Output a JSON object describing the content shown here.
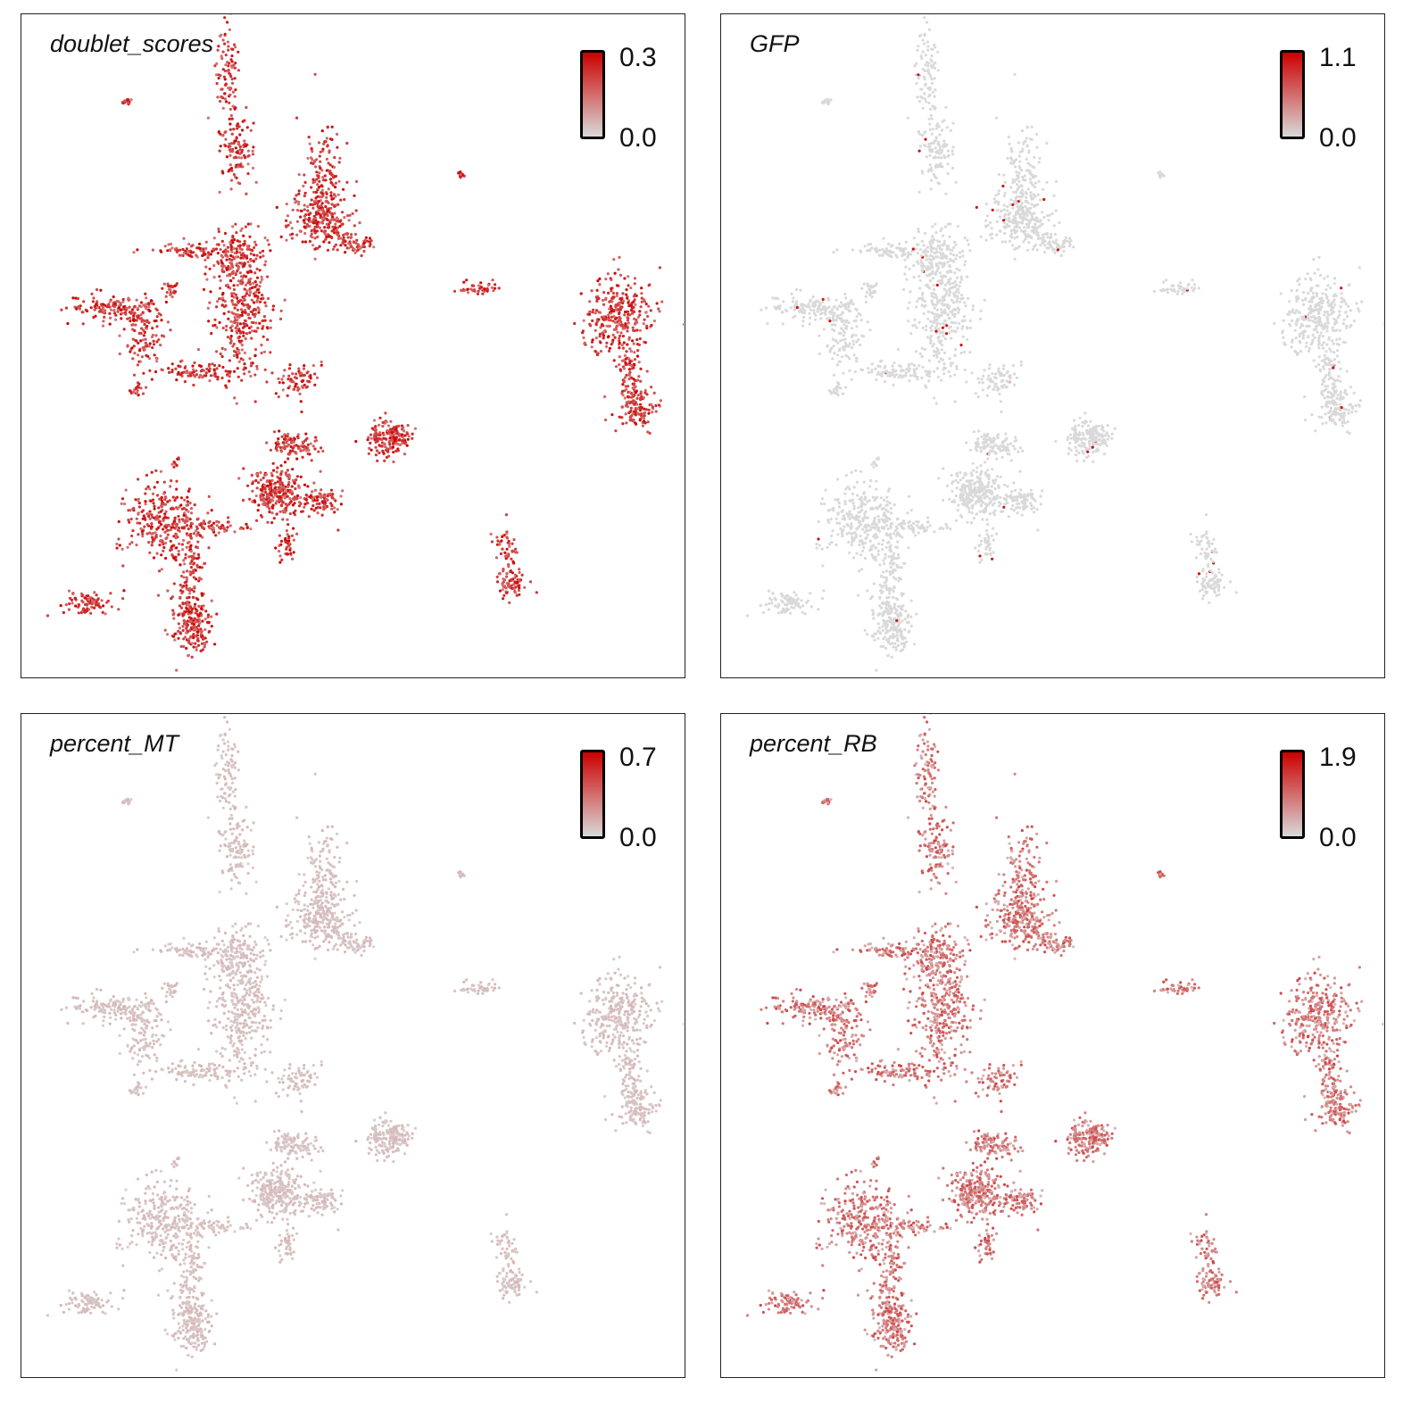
{
  "colors": {
    "low": "#d9d9d9",
    "high": "#cc0000"
  },
  "chart_data": [
    {
      "type": "scatter",
      "title": "doublet_scores",
      "legend": "top-right",
      "colorbar": {
        "min": "0.0",
        "max": "0.3"
      },
      "intensity": "high"
    },
    {
      "type": "scatter",
      "title": "GFP",
      "legend": "top-right",
      "colorbar": {
        "min": "0.0",
        "max": "1.1"
      },
      "intensity": "sparse"
    },
    {
      "type": "scatter",
      "title": "percent_MT",
      "legend": "top-right",
      "colorbar": {
        "min": "0.0",
        "max": "0.7"
      },
      "intensity": "low"
    },
    {
      "type": "scatter",
      "title": "percent_RB",
      "legend": "top-right",
      "colorbar": {
        "min": "0.0",
        "max": "1.9"
      },
      "intensity": "medium"
    }
  ]
}
